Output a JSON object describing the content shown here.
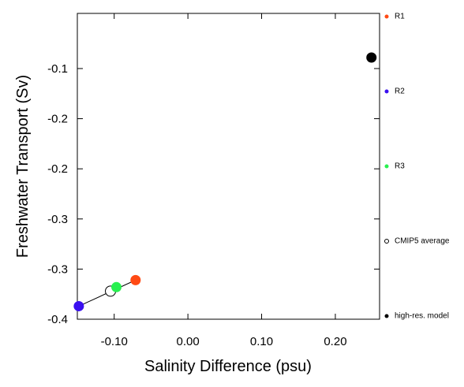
{
  "chart_data": {
    "type": "scatter",
    "xlabel": "Salinity Difference (psu)",
    "ylabel": "Freshwater Transport (Sv)",
    "xlim": [
      -0.15,
      0.26
    ],
    "ylim": [
      -0.4,
      -0.095
    ],
    "xticks": [
      {
        "value": -0.1,
        "label": "-0.10"
      },
      {
        "value": 0,
        "label": "0.00"
      },
      {
        "value": 0.1,
        "label": "0.10"
      },
      {
        "value": 0.2,
        "label": "0.20"
      }
    ],
    "yticks": [
      {
        "value": -0.15,
        "label": "-0.1"
      },
      -0.2,
      {
        "value": -0.25,
        "label": "-0.2"
      },
      -0.3,
      {
        "value": -0.35,
        "label": "-0.3"
      },
      -0.4
    ],
    "legend": "right",
    "series": [
      {
        "name": "R1",
        "color": "#ff4a14",
        "marker": "filled",
        "x": [
          -0.071
        ],
        "values": [
          -0.361
        ]
      },
      {
        "name": "R2",
        "color": "#3a0ff0",
        "marker": "filled",
        "x": [
          -0.148
        ],
        "values": [
          -0.387
        ]
      },
      {
        "name": "R3",
        "color": "#28f050",
        "marker": "filled",
        "x": [
          -0.097
        ],
        "values": [
          -0.368
        ]
      },
      {
        "name": "CMIP5 average",
        "color": "#000000",
        "marker": "open",
        "x": [
          -0.105
        ],
        "values": [
          -0.372
        ]
      },
      {
        "name": "high-res. model",
        "color": "#000000",
        "marker": "filled",
        "x": [
          0.249
        ],
        "values": [
          -0.139
        ]
      }
    ]
  }
}
